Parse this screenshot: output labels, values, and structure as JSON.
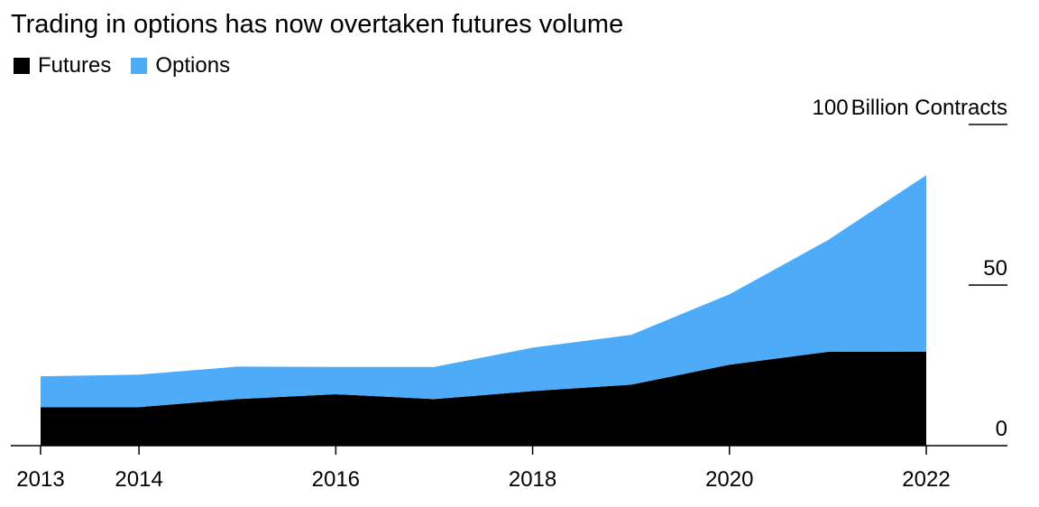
{
  "title": "Trading in options has now overtaken futures volume",
  "legend": [
    {
      "name": "Futures",
      "color": "#000000"
    },
    {
      "name": "Options",
      "color": "#4dabf7"
    }
  ],
  "chart_data": {
    "type": "area",
    "stacked": true,
    "title": "Trading in options has now overtaken futures volume",
    "x": [
      2013,
      2014,
      2015,
      2016,
      2017,
      2018,
      2019,
      2020,
      2021,
      2022
    ],
    "x_tick_labels": [
      "2013",
      "2014",
      "2016",
      "2018",
      "2020",
      "2022"
    ],
    "x_ticks": [
      2013,
      2014,
      2016,
      2018,
      2020,
      2022
    ],
    "xlim": [
      2013,
      2022.8
    ],
    "ylim": [
      0,
      100
    ],
    "y_ticks": [
      0,
      50,
      100
    ],
    "y_tick_labels": [
      "0",
      "50",
      "100"
    ],
    "y_unit_label": "Billion Contracts",
    "y_axis_position": "right",
    "grid": false,
    "legend_position": "top-left",
    "series": [
      {
        "name": "Futures",
        "color": "#000000",
        "values": [
          12.0,
          12.0,
          14.5,
          16.0,
          14.5,
          17.0,
          19.0,
          25.2,
          29.2,
          29.3
        ]
      },
      {
        "name": "Options",
        "color": "#4dabf7",
        "values": [
          9.6,
          10.1,
          10.1,
          8.5,
          10.0,
          13.5,
          15.5,
          21.9,
          34.8,
          54.9
        ]
      }
    ]
  }
}
